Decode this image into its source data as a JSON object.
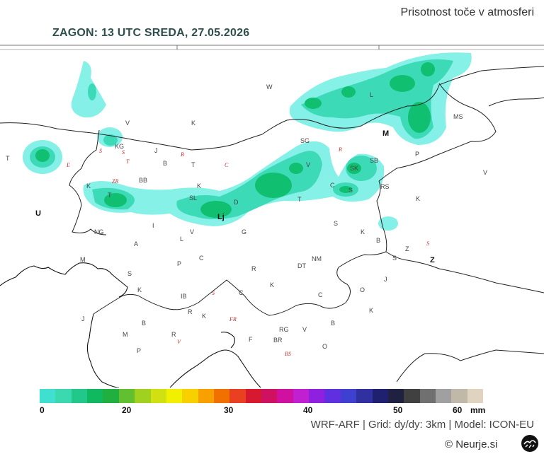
{
  "title": "Prisotnost toče v atmosferi",
  "run_label": "ZAGON: 13 UTC  SREDA, 27.05.2026",
  "colorbar": {
    "colors": [
      "#40e0d0",
      "#3cd8b0",
      "#22c88a",
      "#10b860",
      "#20b040",
      "#60c030",
      "#a0d020",
      "#d0e010",
      "#f0f000",
      "#f8d000",
      "#f8a000",
      "#f07000",
      "#e84020",
      "#d81830",
      "#d01060",
      "#d010a0",
      "#c020d0",
      "#9020e0",
      "#6030e0",
      "#4040d0",
      "#3030a0",
      "#202070",
      "#202040",
      "#404040",
      "#707070",
      "#a0a0a0",
      "#c0b8a8",
      "#e0d4c0"
    ],
    "ticks": [
      "0",
      "20",
      "30",
      "40",
      "50",
      "60"
    ],
    "unit": "mm"
  },
  "credit": "WRF-ARF | Grid: dy/dy: 3km | Model: ICON-EU",
  "copyright": "© Neurje.si",
  "places": {
    "W": "W",
    "KG": "KG",
    "V1": "V",
    "K1": "K",
    "L": "L",
    "M": "M",
    "MS": "MS",
    "T1": "T",
    "J1": "J",
    "B1": "B",
    "T2": "T",
    "SG": "SG",
    "V2": "V",
    "SB": "SB",
    "SK": "SK",
    "P1": "P",
    "V3": "V",
    "K2": "K",
    "TZ": "T",
    "BB": "BB",
    "K3": "K",
    "SL": "SL",
    "D": "D",
    "C1": "C",
    "S1": "S",
    "RS": "RS",
    "K4": "K",
    "T3": "T",
    "U": "U",
    "Lj": "Lj",
    "I": "I",
    "V4": "V",
    "G": "G",
    "S2": "S",
    "NG": "NG",
    "A": "A",
    "L2": "L",
    "K5": "K",
    "B2": "B",
    "Z1": "Z",
    "Z2": "Z",
    "P2": "P",
    "C2": "C",
    "R1": "R",
    "DT": "DT",
    "NM": "NM",
    "S3": "S",
    "M2": "M",
    "S4": "S",
    "K6": "K",
    "J2": "J",
    "IB": "IB",
    "C3": "C",
    "K7": "K",
    "C4": "C",
    "O1": "O",
    "K8": "K",
    "R2": "R",
    "K9": "K",
    "B3": "B",
    "RG": "RG",
    "V5": "V",
    "B4": "B",
    "M3": "M",
    "R3": "R",
    "F": "F",
    "BR": "BR",
    "O2": "O",
    "P3": "P",
    "J3": "J"
  },
  "peaks": {
    "a": "E",
    "b": "ZR",
    "c": "S",
    "d": "T",
    "e": "B",
    "f": "C",
    "g": "R",
    "h": "S",
    "i": "S",
    "j": "FR",
    "k": "V",
    "l": "BS",
    "m": "S"
  }
}
